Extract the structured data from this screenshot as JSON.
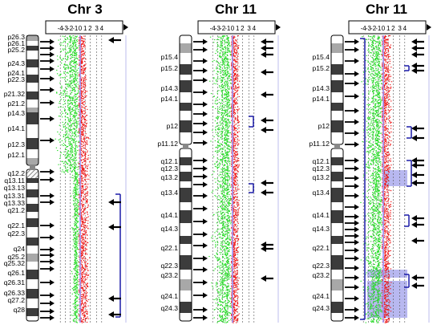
{
  "panels": [
    {
      "title": "Chr 3",
      "scale_labels": [
        "-4",
        "-3",
        "-2",
        "-1",
        "0",
        "1",
        "2",
        "3",
        "4"
      ],
      "bands": [
        "p26.3",
        "p26.1",
        "p25.2",
        "p24.3",
        "p24.1",
        "p22.3",
        "p21.32",
        "p21.2",
        "p14.3",
        "p14.1",
        "p12.3",
        "p12.1",
        "q12.2",
        "q13.11",
        "q13.13",
        "q13.31",
        "q13.33",
        "q21.2",
        "q22.1",
        "q22.3",
        "q24",
        "q25.2",
        "q25.32",
        "q26.1",
        "q26.31",
        "q26.33",
        "q27.2",
        "q28"
      ]
    },
    {
      "title": "Chr 11",
      "scale_labels": [
        "-4",
        "-3",
        "-2",
        "-1",
        "0",
        "1",
        "2",
        "3",
        "4"
      ],
      "bands": [
        "p15.4",
        "p15.2",
        "p14.3",
        "p14.1",
        "p12",
        "p11.12",
        "q12.1",
        "q12.3",
        "q13.2",
        "q13.4",
        "q14.1",
        "q14.3",
        "q22.1",
        "q22.3",
        "q23.2",
        "q24.1",
        "q24.3"
      ]
    },
    {
      "title": "Chr 11",
      "scale_labels": [
        "-4",
        "-3",
        "-2",
        "-1",
        "0",
        "1",
        "2",
        "3",
        "4"
      ],
      "bands": [
        "p15.4",
        "p15.2",
        "p14.3",
        "p14.1",
        "p12",
        "p11.12",
        "q12.1",
        "q12.3",
        "q13.2",
        "q13.4",
        "q14.1",
        "q14.3",
        "q22.1",
        "q22.3",
        "q23.2",
        "q24.1",
        "q24.3"
      ]
    }
  ],
  "colors": {
    "loss": "#22dd22",
    "gain": "#ee1111",
    "baseline": "#9999ff",
    "segment": "#1a1aa8",
    "highlight": "#b8b8f0",
    "arrow": "#000000"
  }
}
